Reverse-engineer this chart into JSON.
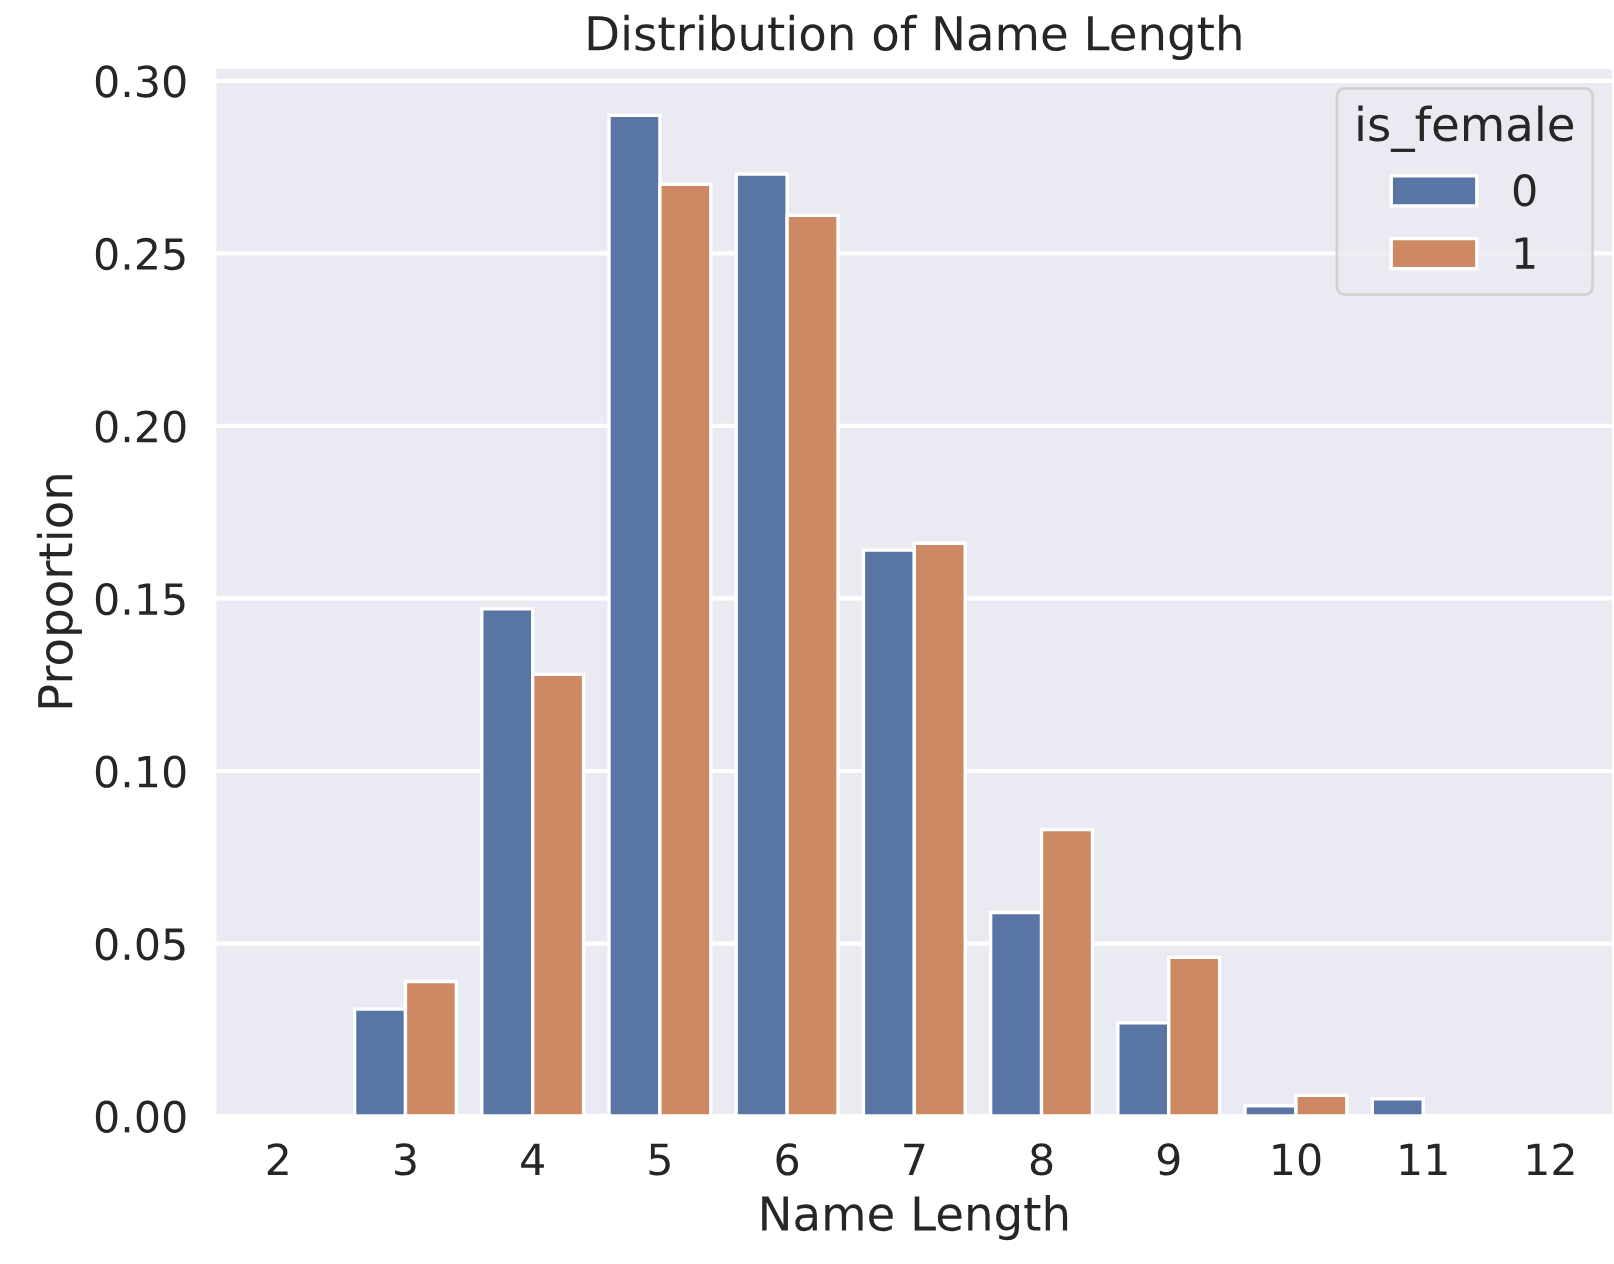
{
  "chart_data": {
    "type": "bar",
    "title": "Distribution of Name Length",
    "xlabel": "Name Length",
    "ylabel": "Proportion",
    "legend_title": "is_female",
    "categories": [
      "2",
      "3",
      "4",
      "5",
      "6",
      "7",
      "8",
      "9",
      "10",
      "11",
      "12"
    ],
    "series": [
      {
        "name": "0",
        "color": "#5975a4",
        "values": [
          null,
          0.031,
          0.147,
          0.29,
          0.273,
          0.164,
          0.059,
          0.027,
          0.003,
          0.005,
          null
        ]
      },
      {
        "name": "1",
        "color": "#cc8963",
        "values": [
          null,
          0.039,
          0.128,
          0.27,
          0.261,
          0.166,
          0.083,
          0.046,
          0.006,
          null,
          null
        ]
      }
    ],
    "ylim": [
      0,
      0.304
    ],
    "yticks": [
      {
        "value": 0,
        "label": "0.00"
      },
      {
        "value": 0.05,
        "label": "0.05"
      },
      {
        "value": 0.1,
        "label": "0.10"
      },
      {
        "value": 0.15,
        "label": "0.15"
      },
      {
        "value": 0.2,
        "label": "0.20"
      },
      {
        "value": 0.25,
        "label": "0.25"
      },
      {
        "value": 0.3,
        "label": "0.30"
      }
    ],
    "grid": "y",
    "legend": "top right"
  }
}
